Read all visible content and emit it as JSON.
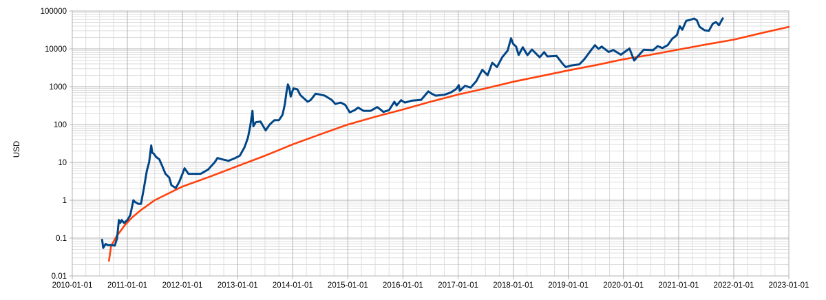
{
  "chart_data": {
    "type": "line",
    "title": "",
    "xlabel": "",
    "ylabel": "USD",
    "y_scale": "log",
    "ylim": [
      0.01,
      100000
    ],
    "xlim": [
      "2010-01-01",
      "2023-01-01"
    ],
    "grid": true,
    "legend": "none",
    "y_ticks": [
      "100000",
      "10000",
      "1000",
      "100",
      "10",
      "1",
      "0.1",
      "0.01"
    ],
    "x_ticks": [
      "2010-01-01",
      "2011-01-01",
      "2012-01-01",
      "2013-01-01",
      "2014-01-01",
      "2015-01-01",
      "2016-01-01",
      "2017-01-01",
      "2018-01-01",
      "2019-01-01",
      "2020-01-01",
      "2021-01-01",
      "2022-01-01",
      "2023-01-01"
    ],
    "series": [
      {
        "color": "#004586",
        "points": [
          [
            "2010-07-18",
            0.09
          ],
          [
            "2010-07-25",
            0.055
          ],
          [
            "2010-08-10",
            0.07
          ],
          [
            "2010-08-25",
            0.065
          ],
          [
            "2010-09-20",
            0.065
          ],
          [
            "2010-10-10",
            0.063
          ],
          [
            "2010-10-25",
            0.1
          ],
          [
            "2010-11-06",
            0.3
          ],
          [
            "2010-11-15",
            0.25
          ],
          [
            "2010-11-25",
            0.3
          ],
          [
            "2010-12-10",
            0.25
          ],
          [
            "2011-01-01",
            0.3
          ],
          [
            "2011-01-20",
            0.4
          ],
          [
            "2011-02-10",
            1.0
          ],
          [
            "2011-02-20",
            0.9
          ],
          [
            "2011-03-15",
            0.8
          ],
          [
            "2011-04-01",
            0.8
          ],
          [
            "2011-04-20",
            2.0
          ],
          [
            "2011-05-10",
            6.0
          ],
          [
            "2011-05-25",
            10.0
          ],
          [
            "2011-06-08",
            28.0
          ],
          [
            "2011-06-15",
            18.0
          ],
          [
            "2011-06-25",
            17.0
          ],
          [
            "2011-07-10",
            14.0
          ],
          [
            "2011-08-01",
            12.0
          ],
          [
            "2011-08-20",
            8.0
          ],
          [
            "2011-09-10",
            5.0
          ],
          [
            "2011-10-05",
            4.0
          ],
          [
            "2011-10-20",
            2.5
          ],
          [
            "2011-11-18",
            2.1
          ],
          [
            "2011-12-10",
            3.0
          ],
          [
            "2012-01-01",
            5.0
          ],
          [
            "2012-01-15",
            7.0
          ],
          [
            "2012-02-10",
            5.0
          ],
          [
            "2012-03-10",
            5.0
          ],
          [
            "2012-05-01",
            5.0
          ],
          [
            "2012-06-20",
            6.5
          ],
          [
            "2012-08-01",
            10.0
          ],
          [
            "2012-08-20",
            13.0
          ],
          [
            "2012-09-20",
            12.0
          ],
          [
            "2012-11-01",
            11.0
          ],
          [
            "2012-12-15",
            13.0
          ],
          [
            "2013-01-15",
            15.0
          ],
          [
            "2013-02-15",
            25.0
          ],
          [
            "2013-03-10",
            45.0
          ],
          [
            "2013-03-25",
            90.0
          ],
          [
            "2013-04-09",
            230.0
          ],
          [
            "2013-04-15",
            90.0
          ],
          [
            "2013-05-01",
            115.0
          ],
          [
            "2013-06-01",
            120.0
          ],
          [
            "2013-07-05",
            70.0
          ],
          [
            "2013-08-01",
            100.0
          ],
          [
            "2013-09-01",
            130.0
          ],
          [
            "2013-10-01",
            130.0
          ],
          [
            "2013-10-25",
            180.0
          ],
          [
            "2013-11-10",
            350.0
          ],
          [
            "2013-11-20",
            700.0
          ],
          [
            "2013-11-30",
            1150.0
          ],
          [
            "2013-12-10",
            900.0
          ],
          [
            "2013-12-18",
            550.0
          ],
          [
            "2014-01-05",
            900.0
          ],
          [
            "2014-02-01",
            850.0
          ],
          [
            "2014-02-20",
            600.0
          ],
          [
            "2014-04-10",
            400.0
          ],
          [
            "2014-05-01",
            450.0
          ],
          [
            "2014-06-01",
            650.0
          ],
          [
            "2014-07-01",
            620.0
          ],
          [
            "2014-08-01",
            580.0
          ],
          [
            "2014-09-15",
            450.0
          ],
          [
            "2014-10-10",
            350.0
          ],
          [
            "2014-11-15",
            380.0
          ],
          [
            "2014-12-15",
            330.0
          ],
          [
            "2015-01-14",
            210.0
          ],
          [
            "2015-02-15",
            240.0
          ],
          [
            "2015-03-10",
            280.0
          ],
          [
            "2015-04-15",
            230.0
          ],
          [
            "2015-06-01",
            230.0
          ],
          [
            "2015-07-15",
            290.0
          ],
          [
            "2015-08-25",
            215.0
          ],
          [
            "2015-10-01",
            240.0
          ],
          [
            "2015-11-05",
            400.0
          ],
          [
            "2015-11-20",
            320.0
          ],
          [
            "2015-12-20",
            440.0
          ],
          [
            "2016-01-15",
            380.0
          ],
          [
            "2016-03-01",
            430.0
          ],
          [
            "2016-05-01",
            450.0
          ],
          [
            "2016-06-17",
            750.0
          ],
          [
            "2016-07-10",
            650.0
          ],
          [
            "2016-08-05",
            580.0
          ],
          [
            "2016-10-01",
            610.0
          ],
          [
            "2016-11-15",
            710.0
          ],
          [
            "2016-12-20",
            880.0
          ],
          [
            "2017-01-05",
            1100.0
          ],
          [
            "2017-01-12",
            780.0
          ],
          [
            "2017-02-15",
            1050.0
          ],
          [
            "2017-03-25",
            950.0
          ],
          [
            "2017-05-01",
            1400.0
          ],
          [
            "2017-06-10",
            2800.0
          ],
          [
            "2017-07-15",
            2000.0
          ],
          [
            "2017-08-15",
            4300.0
          ],
          [
            "2017-09-15",
            3300.0
          ],
          [
            "2017-10-20",
            6000.0
          ],
          [
            "2017-11-25",
            9000.0
          ],
          [
            "2017-12-17",
            19000.0
          ],
          [
            "2018-01-01",
            13500.0
          ],
          [
            "2018-01-20",
            11500.0
          ],
          [
            "2018-02-06",
            6900.0
          ],
          [
            "2018-03-05",
            11000.0
          ],
          [
            "2018-04-05",
            6800.0
          ],
          [
            "2018-05-05",
            9600.0
          ],
          [
            "2018-06-25",
            6000.0
          ],
          [
            "2018-07-25",
            8200.0
          ],
          [
            "2018-08-15",
            6300.0
          ],
          [
            "2018-10-15",
            6500.0
          ],
          [
            "2018-11-25",
            4000.0
          ],
          [
            "2018-12-15",
            3300.0
          ],
          [
            "2019-01-15",
            3600.0
          ],
          [
            "2019-03-15",
            3900.0
          ],
          [
            "2019-04-15",
            5200.0
          ],
          [
            "2019-05-25",
            8500.0
          ],
          [
            "2019-06-26",
            12500.0
          ],
          [
            "2019-07-20",
            10000.0
          ],
          [
            "2019-08-10",
            11500.0
          ],
          [
            "2019-09-25",
            8300.0
          ],
          [
            "2019-10-26",
            9300.0
          ],
          [
            "2019-12-15",
            7000.0
          ],
          [
            "2020-02-10",
            10200.0
          ],
          [
            "2020-03-12",
            4900.0
          ],
          [
            "2020-04-15",
            7000.0
          ],
          [
            "2020-05-15",
            9500.0
          ],
          [
            "2020-07-15",
            9200.0
          ],
          [
            "2020-08-15",
            11800.0
          ],
          [
            "2020-09-15",
            10500.0
          ],
          [
            "2020-10-20",
            12500.0
          ],
          [
            "2020-11-20",
            18500.0
          ],
          [
            "2020-12-20",
            23000.0
          ],
          [
            "2021-01-08",
            40000.0
          ],
          [
            "2021-01-25",
            32000.0
          ],
          [
            "2021-02-20",
            55000.0
          ],
          [
            "2021-03-15",
            58000.0
          ],
          [
            "2021-04-14",
            63000.0
          ],
          [
            "2021-05-01",
            57000.0
          ],
          [
            "2021-05-20",
            38000.0
          ],
          [
            "2021-06-22",
            31000.0
          ],
          [
            "2021-07-20",
            30000.0
          ],
          [
            "2021-08-15",
            46000.0
          ],
          [
            "2021-09-06",
            51000.0
          ],
          [
            "2021-09-25",
            42000.0
          ],
          [
            "2021-10-20",
            64000.0
          ]
        ]
      },
      {
        "color": "#ff420e",
        "points": [
          [
            "2010-09-01",
            0.025
          ],
          [
            "2010-09-15",
            0.06
          ],
          [
            "2010-10-01",
            0.08
          ],
          [
            "2010-10-20",
            0.11
          ],
          [
            "2010-11-15",
            0.15
          ],
          [
            "2010-12-15",
            0.22
          ],
          [
            "2011-02-01",
            0.35
          ],
          [
            "2011-04-01",
            0.55
          ],
          [
            "2011-07-01",
            1.0
          ],
          [
            "2012-01-01",
            2.3
          ],
          [
            "2012-07-01",
            4.2
          ],
          [
            "2013-01-01",
            8.0
          ],
          [
            "2013-07-01",
            15.0
          ],
          [
            "2014-01-01",
            30.0
          ],
          [
            "2014-07-01",
            55.0
          ],
          [
            "2015-01-01",
            100.0
          ],
          [
            "2015-07-01",
            160.0
          ],
          [
            "2016-01-01",
            250.0
          ],
          [
            "2016-07-01",
            400.0
          ],
          [
            "2017-01-01",
            620.0
          ],
          [
            "2017-07-01",
            900.0
          ],
          [
            "2018-01-01",
            1350.0
          ],
          [
            "2018-07-01",
            1900.0
          ],
          [
            "2019-01-01",
            2700.0
          ],
          [
            "2019-07-01",
            3700.0
          ],
          [
            "2020-01-01",
            5300.0
          ],
          [
            "2020-07-01",
            7000.0
          ],
          [
            "2021-01-01",
            9600.0
          ],
          [
            "2021-07-01",
            13000.0
          ],
          [
            "2022-01-01",
            17500.0
          ],
          [
            "2022-07-01",
            26000.0
          ],
          [
            "2023-01-01",
            38000.0
          ]
        ]
      }
    ]
  }
}
